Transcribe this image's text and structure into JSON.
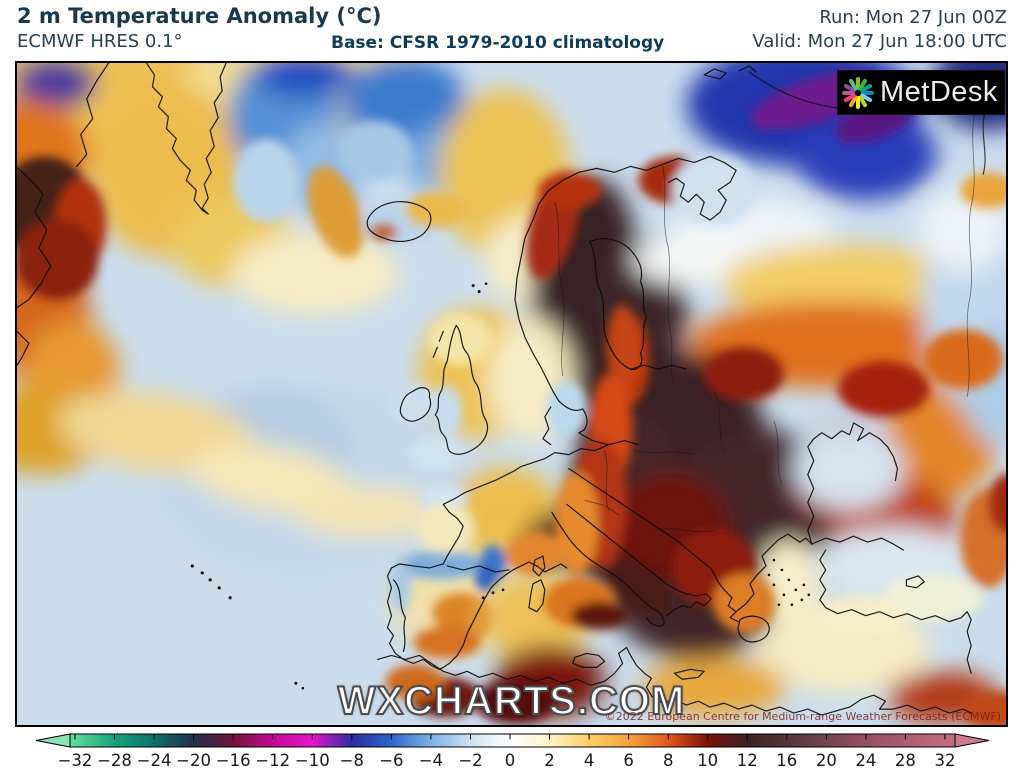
{
  "header": {
    "title": "2 m Temperature Anomaly (°C)",
    "model": "ECMWF HRES 0.1°",
    "base": "Base: CFSR 1979-2010 climatology",
    "run": "Run: Mon 27 Jun 00Z",
    "valid": "Valid: Mon 27 Jun 18:00 UTC",
    "text_color": "#193a4e"
  },
  "map": {
    "logo_text": "MetDesk",
    "logo_bg": "#000000",
    "logo_ray_colors": [
      "#7fc41c",
      "#3eb049",
      "#00a887",
      "#0c89c9",
      "#7fd0ee",
      "#bcd632",
      "#f2e72a",
      "#f5a91f",
      "#ef4178",
      "#c9519c",
      "#8f4a9e",
      "#5bbb8f"
    ],
    "watermark": "WXCHARTS.COM",
    "copyright": "©2022 European Centre for Medium-range Weather Forecasts (ECMWF)"
  },
  "colorbar": {
    "tick_labels": [
      "−32",
      "−28",
      "−24",
      "−20",
      "−16",
      "−12",
      "−10",
      "−8",
      "−6",
      "−4",
      "−2",
      "0",
      "2",
      "4",
      "6",
      "8",
      "10",
      "12",
      "16",
      "20",
      "24",
      "28",
      "32"
    ],
    "colors": [
      "#5fd79a",
      "#16a379",
      "#0b7267",
      "#232e4e",
      "#701337",
      "#c40b92",
      "#e515cb",
      "#2b2d9e",
      "#2e66cb",
      "#7eb1e3",
      "#cfe2f3",
      "#ffffff",
      "#fdf3c8",
      "#fbcf66",
      "#f5a23b",
      "#e2591f",
      "#7a1208",
      "#3c2123",
      "#543539",
      "#764451",
      "#935062",
      "#ad5c72",
      "#c16b82"
    ],
    "arrow_left_color": "#8ce2b0",
    "arrow_right_color": "#cd7c90"
  },
  "chart_data": {
    "type": "heatmap",
    "title": "2 m Temperature Anomaly (°C)",
    "variable": "2 m temperature anomaly",
    "units": "°C",
    "model": "ECMWF HRES 0.1°",
    "climatology_base": "CFSR 1979-2010",
    "run_time": "Mon 27 Jun 00Z",
    "valid_time": "Mon 27 Jun 18:00 UTC",
    "legend_position": "bottom",
    "colorbar_ticks": [
      -32,
      -28,
      -24,
      -20,
      -16,
      -12,
      -10,
      -8,
      -6,
      -4,
      -2,
      0,
      2,
      4,
      6,
      8,
      10,
      12,
      16,
      20,
      24,
      28,
      32
    ],
    "colorbar_colors": [
      "#5fd79a",
      "#16a379",
      "#0b7267",
      "#232e4e",
      "#701337",
      "#c40b92",
      "#e515cb",
      "#2b2d9e",
      "#2e66cb",
      "#7eb1e3",
      "#cfe2f3",
      "#ffffff",
      "#fdf3c8",
      "#fbcf66",
      "#f5a23b",
      "#e2591f",
      "#7a1208",
      "#3c2123",
      "#543539",
      "#764451",
      "#935062",
      "#ad5c72",
      "#c16b82"
    ]
  }
}
